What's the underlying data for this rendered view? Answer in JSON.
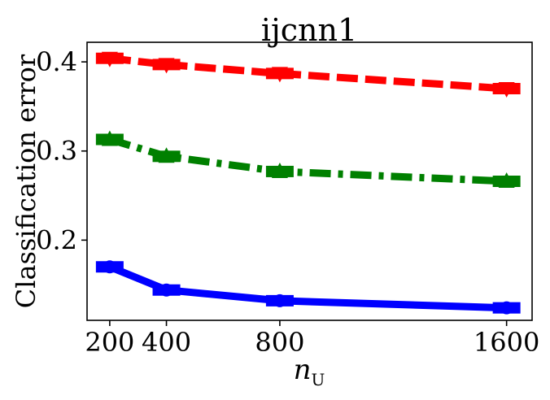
{
  "chart_data": {
    "type": "line",
    "title": "ijcnn1",
    "xlabel": "n",
    "xlabel_subscript": "U",
    "ylabel": "Classification error",
    "x": [
      200,
      400,
      800,
      1600
    ],
    "xticks": [
      "200",
      "400",
      "800",
      "1600"
    ],
    "yticks": [
      "0.2",
      "0.3",
      "0.4"
    ],
    "ytick_values": [
      0.2,
      0.3,
      0.4
    ],
    "xlim": [
      120,
      1690
    ],
    "ylim": [
      0.11,
      0.422
    ],
    "grid": false,
    "series": [
      {
        "values": [
          0.404,
          0.397,
          0.387,
          0.37
        ],
        "color": "#ff0000",
        "line_style": "dashed",
        "marker": "triangle-down"
      },
      {
        "values": [
          0.313,
          0.294,
          0.277,
          0.266
        ],
        "color": "#008000",
        "line_style": "dash-dot",
        "marker": "triangle-up"
      },
      {
        "values": [
          0.17,
          0.144,
          0.132,
          0.124
        ],
        "color": "#0000ff",
        "line_style": "solid",
        "marker": "circle"
      }
    ]
  }
}
